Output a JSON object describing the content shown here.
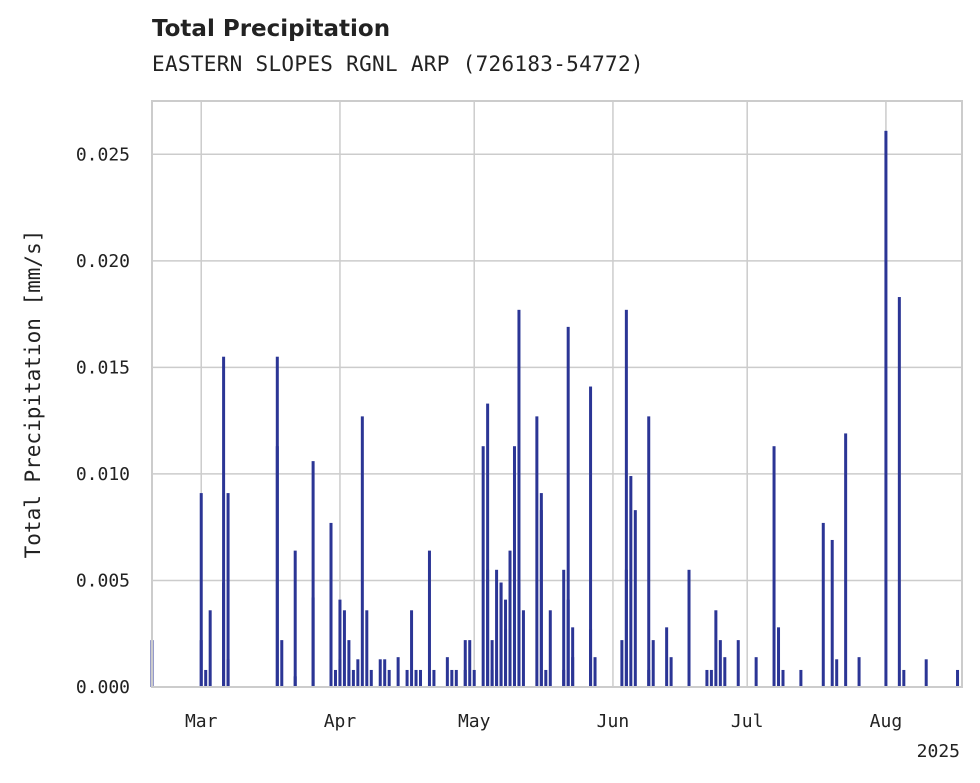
{
  "title": "Total Precipitation",
  "subtitle": "EASTERN SLOPES RGNL ARP (726183-54772)",
  "colors": {
    "bar": "#2b3595",
    "grid": "#cccccc",
    "frame": "#cccccc",
    "text": "#222222"
  },
  "chart_data": {
    "type": "bar",
    "ylabel": "Total Precipitation [mm/s]",
    "ylim": [
      0,
      0.0275
    ],
    "y_ticks": [
      "0.000",
      "0.005",
      "0.010",
      "0.015",
      "0.020",
      "0.025"
    ],
    "x_ticks": [
      "Mar",
      "Apr",
      "May",
      "Jun",
      "Jul",
      "Aug"
    ],
    "x_tick_dates": [
      "2025-03-01",
      "2025-04-01",
      "2025-05-01",
      "2025-06-01",
      "2025-07-01",
      "2025-08-01"
    ],
    "x_year_label": "2025",
    "xlim": [
      "2025-02-18",
      "2025-08-18"
    ],
    "grid": true,
    "x": [
      "2025-02-18",
      "2025-03-01",
      "2025-03-01",
      "2025-03-02",
      "2025-03-03",
      "2025-03-06",
      "2025-03-06",
      "2025-03-07",
      "2025-03-07",
      "2025-03-18",
      "2025-03-18",
      "2025-03-19",
      "2025-03-22",
      "2025-03-22",
      "2025-03-26",
      "2025-03-26",
      "2025-03-30",
      "2025-03-30",
      "2025-03-31",
      "2025-04-01",
      "2025-04-01",
      "2025-04-02",
      "2025-04-03",
      "2025-04-03",
      "2025-04-04",
      "2025-04-05",
      "2025-04-06",
      "2025-04-07",
      "2025-04-08",
      "2025-04-10",
      "2025-04-11",
      "2025-04-12",
      "2025-04-14",
      "2025-04-16",
      "2025-04-17",
      "2025-04-18",
      "2025-04-19",
      "2025-04-21",
      "2025-04-22",
      "2025-04-25",
      "2025-04-26",
      "2025-04-27",
      "2025-04-29",
      "2025-04-29",
      "2025-04-30",
      "2025-05-01",
      "2025-05-03",
      "2025-05-04",
      "2025-05-04",
      "2025-05-05",
      "2025-05-05",
      "2025-05-06",
      "2025-05-06",
      "2025-05-07",
      "2025-05-07",
      "2025-05-08",
      "2025-05-08",
      "2025-05-09",
      "2025-05-09",
      "2025-05-10",
      "2025-05-10",
      "2025-05-11",
      "2025-05-11",
      "2025-05-12",
      "2025-05-15",
      "2025-05-16",
      "2025-05-16",
      "2025-05-17",
      "2025-05-18",
      "2025-05-21",
      "2025-05-21",
      "2025-05-22",
      "2025-05-22",
      "2025-05-23",
      "2025-05-23",
      "2025-05-27",
      "2025-05-27",
      "2025-05-28",
      "2025-06-03",
      "2025-06-04",
      "2025-06-04",
      "2025-06-05",
      "2025-06-06",
      "2025-06-09",
      "2025-06-09",
      "2025-06-10",
      "2025-06-13",
      "2025-06-14",
      "2025-06-18",
      "2025-06-22",
      "2025-06-23",
      "2025-06-24",
      "2025-06-25",
      "2025-06-26",
      "2025-06-29",
      "2025-07-03",
      "2025-07-07",
      "2025-07-08",
      "2025-07-09",
      "2025-07-13",
      "2025-07-18",
      "2025-07-20",
      "2025-07-21",
      "2025-07-23",
      "2025-07-26",
      "2025-08-01",
      "2025-08-04",
      "2025-08-05",
      "2025-08-10",
      "2025-08-17"
    ],
    "series": [
      {
        "values": [
          0.0022,
          0.0022,
          0.0091,
          0.0008,
          0.0036,
          0.0049,
          0.0155,
          0.0091,
          0.0013,
          0.0155,
          0.0113,
          0.0022,
          0.0005,
          0.0064,
          0.0042,
          0.0106,
          0.0077,
          0.0064,
          0.0008,
          0.0041,
          0.0013,
          0.0036,
          0.0022,
          0.0008,
          0.0008,
          0.0013,
          0.0127,
          0.0036,
          0.0008,
          0.0013,
          0.0013,
          0.0008,
          0.0014,
          0.0008,
          0.0036,
          0.0008,
          0.0008,
          0.0064,
          0.0008,
          0.0014,
          0.0008,
          0.0008,
          0.0022,
          0.0008,
          0.0022,
          0.0008,
          0.0113,
          0.0133,
          0.0055,
          0.0022,
          0.0008,
          0.0008,
          0.0055,
          0.0049,
          0.0049,
          0.0041,
          0.0027,
          0.0064,
          0.0022,
          0.0022,
          0.0113,
          0.0177,
          0.0049,
          0.0036,
          0.0127,
          0.0091,
          0.0083,
          0.0008,
          0.0036,
          0.0055,
          0.0008,
          0.0169,
          0.0041,
          0.0014,
          0.0028,
          0.0027,
          0.0141,
          0.0014,
          0.0022,
          0.0177,
          0.0055,
          0.0099,
          0.0083,
          0.0127,
          0.0008,
          0.0022,
          0.0028,
          0.0014,
          0.0055,
          0.0008,
          0.0008,
          0.0036,
          0.0022,
          0.0014,
          0.0022,
          0.0014,
          0.0113,
          0.0028,
          0.0008,
          0.0008,
          0.0077,
          0.0069,
          0.0013,
          0.0119,
          0.0014,
          0.0261,
          0.0183,
          0.0008,
          0.0013,
          0.0008
        ]
      }
    ]
  }
}
